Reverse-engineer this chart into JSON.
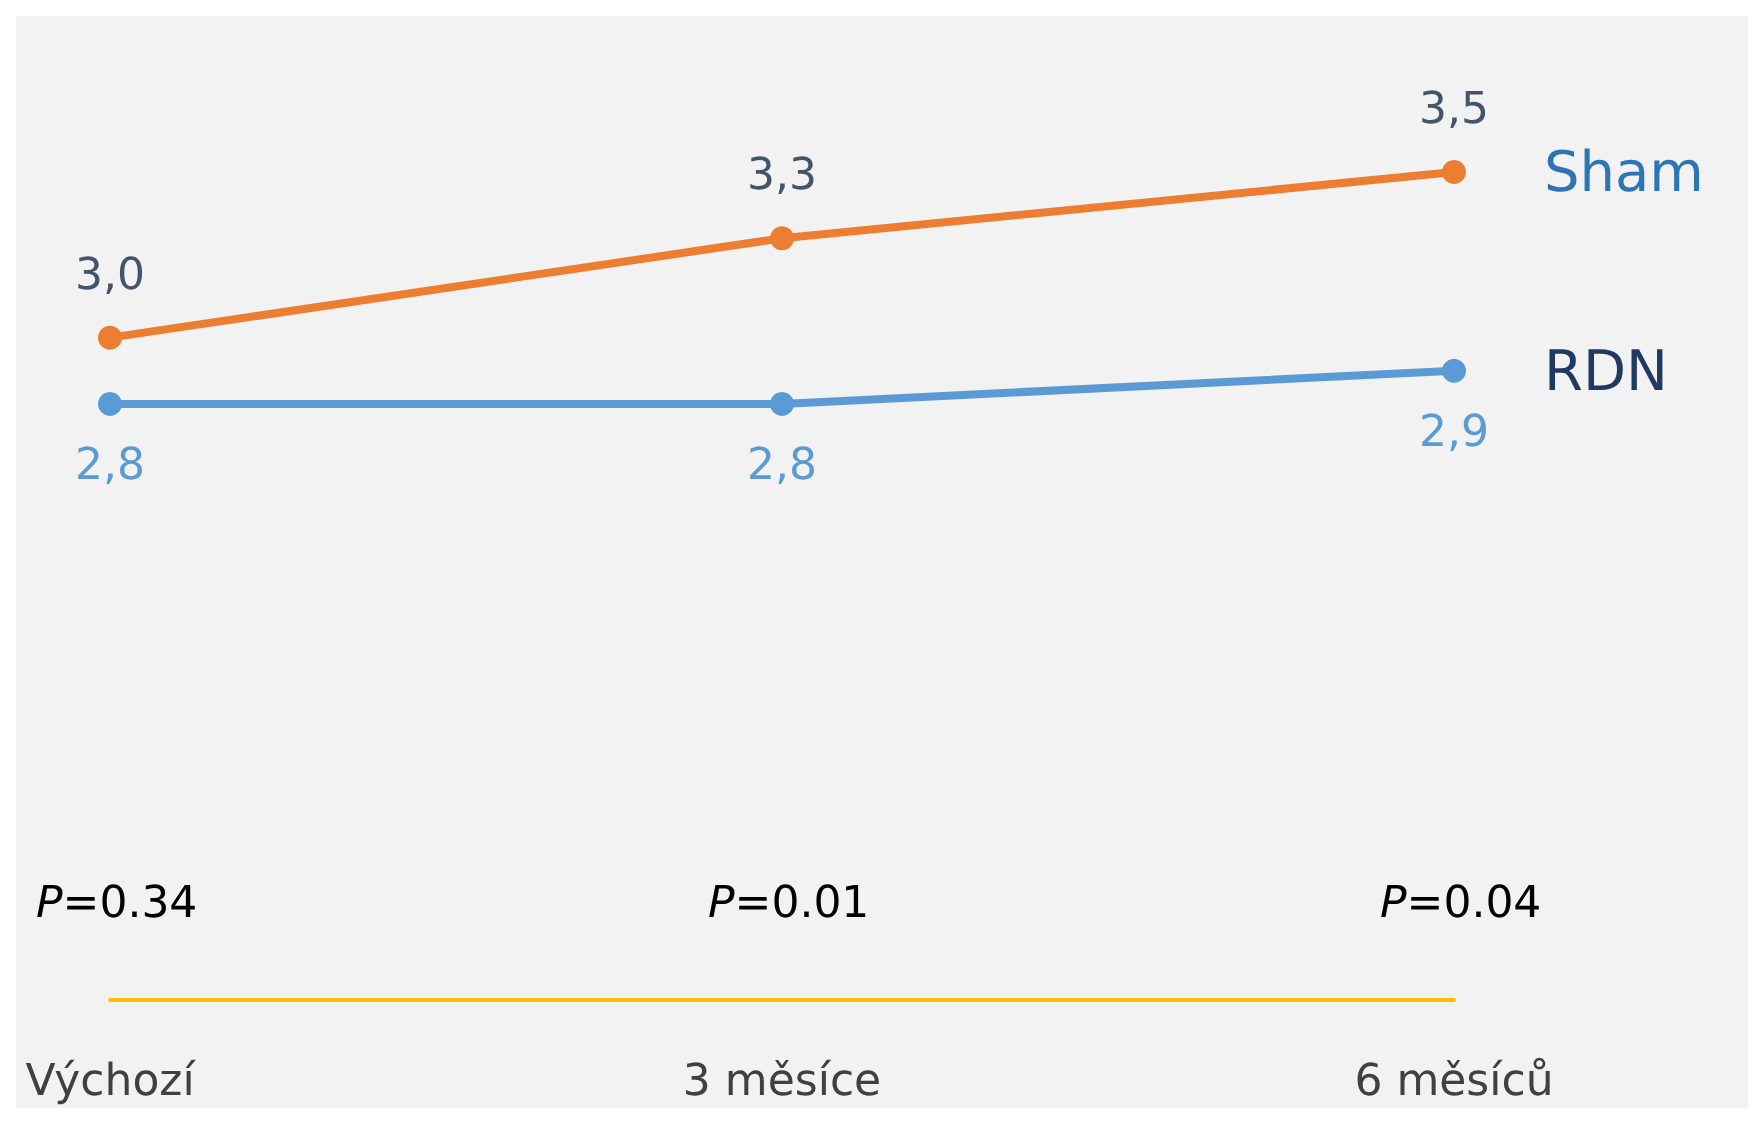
{
  "chart_data": {
    "type": "line",
    "categories": [
      "Výchozí",
      "3 měsíce",
      "6 měsíců"
    ],
    "series": [
      {
        "name": "Sham",
        "color": "#ed7d31",
        "values": [
          3.0,
          3.3,
          3.5
        ],
        "value_labels": [
          "3,0",
          "3,3",
          "3,5"
        ]
      },
      {
        "name": "RDN",
        "color": "#5b9bd5",
        "values": [
          2.8,
          2.8,
          2.9
        ],
        "value_labels": [
          "2,8",
          "2,8",
          "2,9"
        ]
      }
    ],
    "marker": "circle",
    "line_style": "solid",
    "grid": false,
    "legend": false,
    "annotations": [
      "P=0.34",
      "P=0.01",
      "P=0.04"
    ]
  }
}
